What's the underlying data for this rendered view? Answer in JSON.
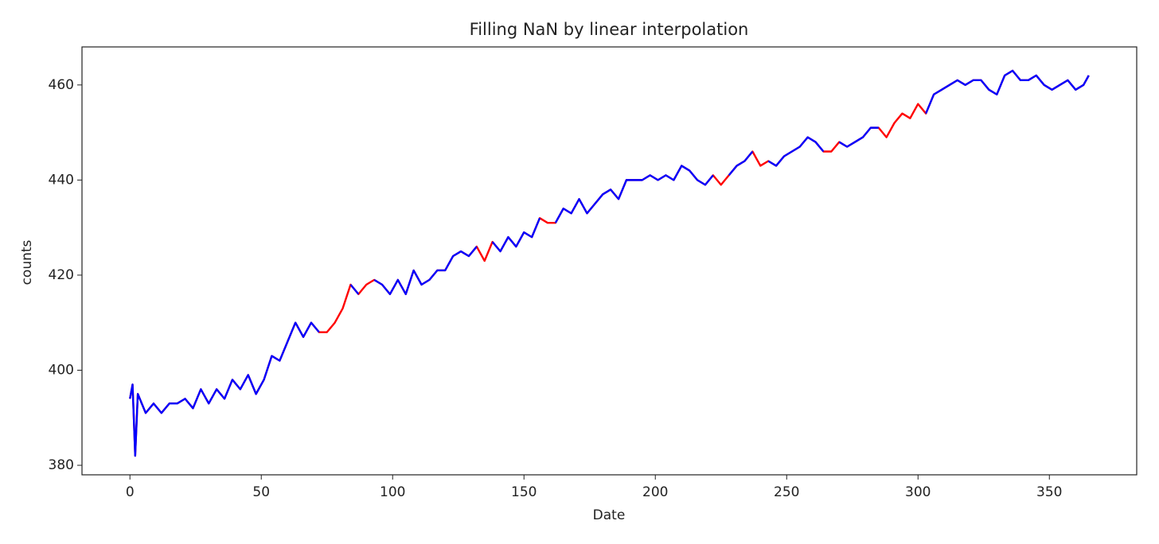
{
  "chart_data": {
    "type": "line",
    "title": "Filling NaN by linear interpolation",
    "x_label": "Date",
    "y_label": "counts",
    "x": [
      0,
      1,
      2,
      3,
      6,
      9,
      12,
      15,
      18,
      21,
      24,
      27,
      30,
      33,
      36,
      39,
      42,
      45,
      48,
      51,
      54,
      57,
      60,
      63,
      66,
      69,
      72,
      75,
      78,
      81,
      84,
      87,
      90,
      93,
      96,
      99,
      102,
      105,
      108,
      111,
      114,
      117,
      120,
      123,
      126,
      129,
      132,
      135,
      138,
      141,
      144,
      147,
      150,
      153,
      156,
      159,
      162,
      165,
      168,
      171,
      174,
      177,
      180,
      183,
      186,
      189,
      192,
      195,
      198,
      201,
      204,
      207,
      210,
      213,
      216,
      219,
      222,
      225,
      228,
      231,
      234,
      237,
      240,
      243,
      246,
      249,
      252,
      255,
      258,
      261,
      264,
      267,
      270,
      273,
      276,
      279,
      282,
      285,
      288,
      291,
      294,
      297,
      300,
      303,
      306,
      309,
      312,
      315,
      318,
      321,
      324,
      327,
      330,
      333,
      336,
      339,
      342,
      345,
      348,
      351,
      354,
      357,
      360,
      363,
      365
    ],
    "series": [
      {
        "color": "#ff0000",
        "values": [
          394,
          397,
          382,
          395,
          391,
          393,
          391,
          393,
          393,
          394,
          392,
          396,
          393,
          396,
          394,
          398,
          396,
          399,
          395,
          398,
          403,
          402,
          406,
          410,
          407,
          410,
          408,
          408,
          410,
          413,
          418,
          416,
          418,
          419,
          418,
          416,
          419,
          416,
          421,
          418,
          419,
          421,
          421,
          424,
          425,
          424,
          426,
          423,
          427,
          425,
          428,
          426,
          429,
          428,
          432,
          431,
          431,
          434,
          433,
          436,
          433,
          435,
          437,
          438,
          436,
          440,
          440,
          440,
          441,
          440,
          441,
          440,
          443,
          442,
          440,
          439,
          441,
          439,
          441,
          443,
          444,
          446,
          443,
          444,
          443,
          445,
          446,
          447,
          449,
          448,
          446,
          446,
          448,
          447,
          448,
          449,
          451,
          451,
          449,
          452,
          454,
          453,
          456,
          454,
          458,
          459,
          460,
          461,
          460,
          461,
          461,
          459,
          458,
          462,
          463,
          461,
          461,
          462,
          460,
          459,
          460,
          461,
          459,
          460,
          462
        ]
      },
      {
        "color": "#0000ff",
        "values": [
          394,
          397,
          382,
          395,
          391,
          393,
          391,
          393,
          393,
          394,
          392,
          396,
          393,
          396,
          394,
          398,
          396,
          399,
          395,
          398,
          403,
          402,
          406,
          410,
          407,
          410,
          408,
          null,
          410,
          null,
          418,
          416,
          null,
          419,
          418,
          416,
          419,
          416,
          421,
          418,
          419,
          421,
          421,
          424,
          425,
          424,
          426,
          null,
          427,
          425,
          428,
          426,
          429,
          428,
          432,
          null,
          431,
          434,
          433,
          436,
          433,
          435,
          437,
          438,
          436,
          440,
          440,
          440,
          441,
          440,
          441,
          440,
          443,
          442,
          440,
          439,
          441,
          null,
          441,
          443,
          444,
          446,
          null,
          444,
          443,
          445,
          446,
          447,
          449,
          448,
          446,
          null,
          448,
          447,
          448,
          449,
          451,
          451,
          null,
          452,
          null,
          453,
          null,
          454,
          458,
          459,
          460,
          461,
          460,
          461,
          461,
          459,
          458,
          462,
          463,
          461,
          461,
          462,
          460,
          459,
          460,
          461,
          459,
          460,
          462
        ]
      }
    ],
    "xlim": [
      -18.25,
      383.25
    ],
    "ylim": [
      378,
      468
    ],
    "xticks": [
      0,
      50,
      100,
      150,
      200,
      250,
      300,
      350
    ],
    "yticks": [
      380,
      400,
      420,
      440,
      460
    ]
  }
}
